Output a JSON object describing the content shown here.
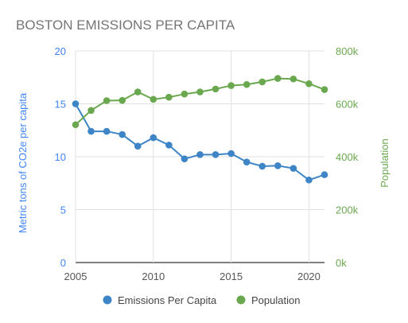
{
  "chart_data": {
    "type": "line",
    "title": "BOSTON EMISSIONS PER CAPITA",
    "x": [
      2005,
      2006,
      2007,
      2008,
      2009,
      2010,
      2011,
      2012,
      2013,
      2014,
      2015,
      2016,
      2017,
      2018,
      2019,
      2020,
      2021
    ],
    "x_ticks": [
      "2005",
      "2010",
      "2015",
      "2020"
    ],
    "xlim": [
      2005,
      2021
    ],
    "y_left": {
      "label": "Metric tons of CO2e per capita",
      "ticks": [
        "0",
        "5",
        "10",
        "15",
        "20"
      ],
      "lim": [
        0,
        20
      ],
      "color": "#4285f4"
    },
    "y_right": {
      "label": "Population",
      "ticks": [
        "0k",
        "200k",
        "400k",
        "600k",
        "800k"
      ],
      "lim": [
        0,
        800000
      ],
      "color": "#6aa84f"
    },
    "series": [
      {
        "name": "Emissions Per Capita",
        "axis": "left",
        "color": "#3d85c6",
        "values": [
          15.0,
          12.4,
          12.4,
          12.1,
          11.0,
          11.8,
          11.1,
          9.8,
          10.2,
          10.2,
          10.3,
          9.5,
          9.1,
          9.15,
          8.9,
          7.8,
          8.3
        ]
      },
      {
        "name": "Population",
        "axis": "right",
        "color": "#6aa84f",
        "values": [
          521000,
          575000,
          612000,
          613000,
          645000,
          617000,
          625000,
          637000,
          645000,
          656000,
          669000,
          673000,
          683000,
          696000,
          694000,
          676000,
          654000
        ]
      }
    ],
    "grid": true,
    "legend_position": "bottom"
  }
}
